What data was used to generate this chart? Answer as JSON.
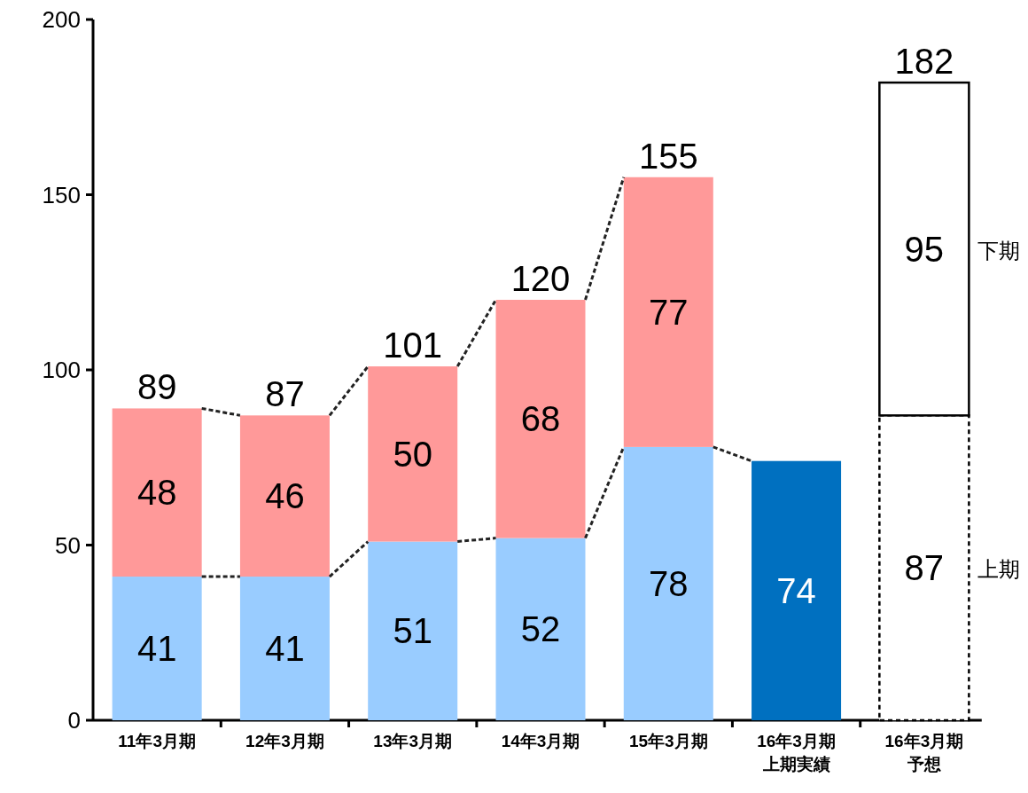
{
  "chart_data": {
    "type": "bar",
    "stacked": true,
    "categories": [
      "11年3月期",
      "12年3月期",
      "13年3月期",
      "14年3月期",
      "15年3月期",
      "16年3月期上期実績",
      "16年3月期予想"
    ],
    "series": [
      {
        "name": "上期",
        "colors": [
          "#99ccff",
          "#99ccff",
          "#99ccff",
          "#99ccff",
          "#99ccff",
          "#0070c0",
          "#ffffff"
        ],
        "values": [
          41,
          41,
          51,
          52,
          78,
          74,
          87
        ]
      },
      {
        "name": "下期",
        "colors": [
          "#ff9999",
          "#ff9999",
          "#ff9999",
          "#ff9999",
          "#ff9999",
          null,
          "#ffffff"
        ],
        "values": [
          48,
          46,
          50,
          68,
          77,
          null,
          95
        ]
      }
    ],
    "totals": [
      "89",
      "87",
      "101",
      "120",
      "155",
      null,
      "182"
    ],
    "data_labels": true,
    "ylim": [
      0,
      200
    ],
    "yticks": [
      0,
      50,
      100,
      150,
      200
    ]
  }
}
